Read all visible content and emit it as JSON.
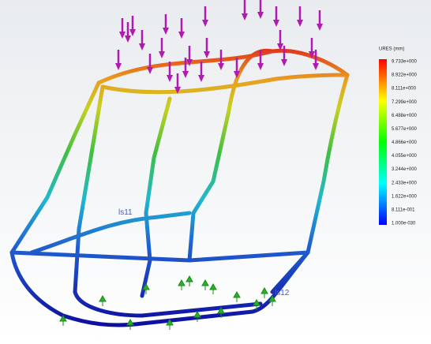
{
  "legend": {
    "title": "URES (mm)",
    "labels": [
      "9.733e+000",
      "8.922e+000",
      "8.111e+000",
      "7.299e+000",
      "6.488e+000",
      "5.677e+000",
      "4.866e+000",
      "4.055e+000",
      "3.244e+000",
      "2.433e+000",
      "1.622e+000",
      "8.111e-001",
      "1.000e-030"
    ]
  },
  "annotations": [
    "ls11",
    "ls12"
  ]
}
